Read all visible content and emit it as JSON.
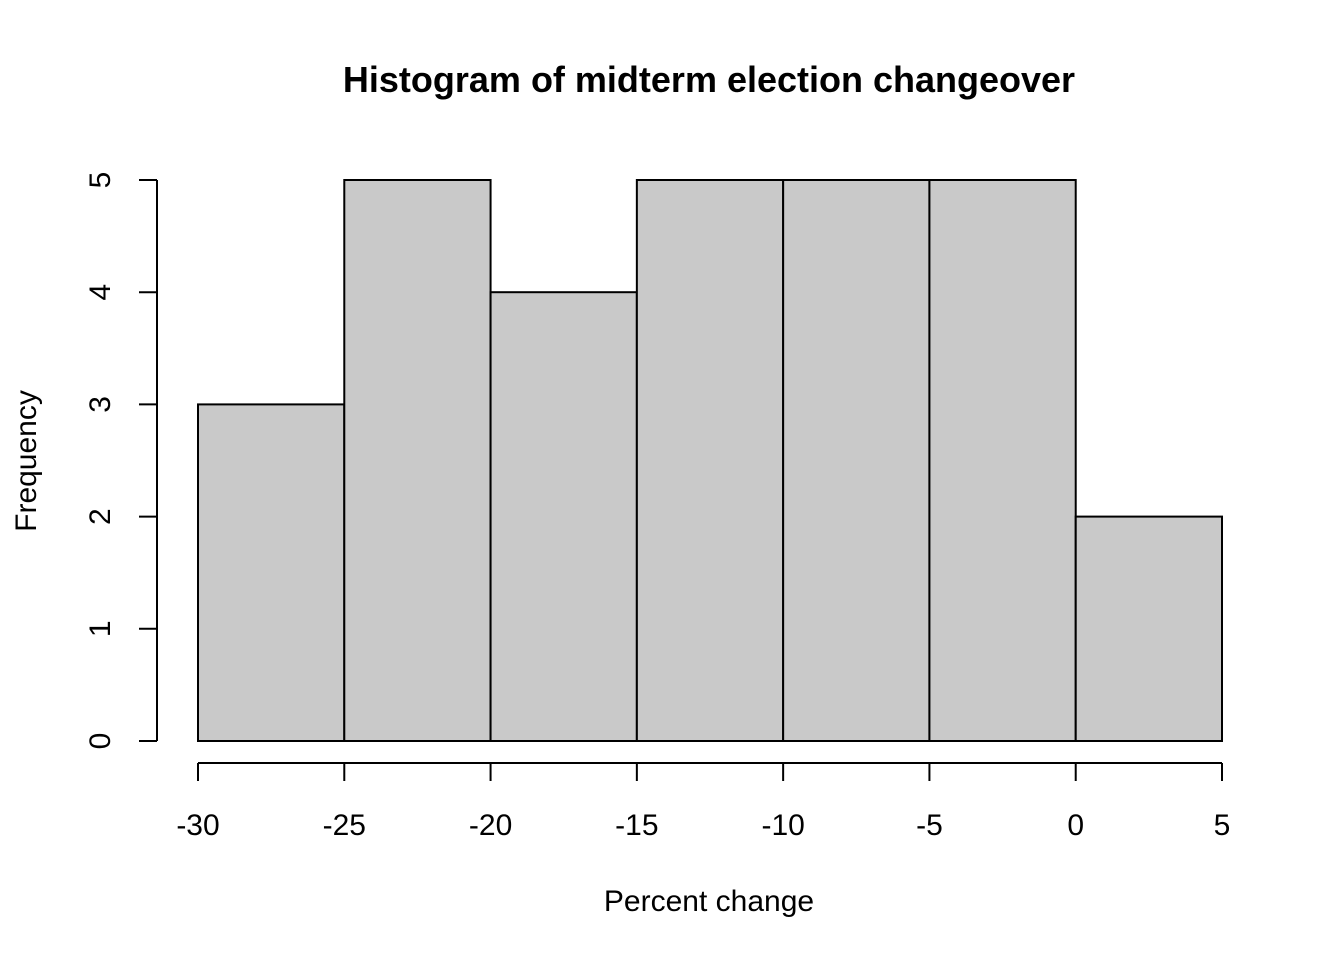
{
  "chart_data": {
    "type": "bar",
    "subtype": "histogram",
    "title": "Histogram of midterm election changeover",
    "xlabel": "Percent change",
    "ylabel": "Frequency",
    "bins": [
      {
        "from": -30,
        "to": -25,
        "count": 3
      },
      {
        "from": -25,
        "to": -20,
        "count": 5
      },
      {
        "from": -20,
        "to": -15,
        "count": 4
      },
      {
        "from": -15,
        "to": -10,
        "count": 5
      },
      {
        "from": -10,
        "to": -5,
        "count": 5
      },
      {
        "from": -5,
        "to": 0,
        "count": 5
      },
      {
        "from": 0,
        "to": 5,
        "count": 2
      }
    ],
    "xlim": [
      -30,
      5
    ],
    "ylim": [
      0,
      5
    ],
    "x_ticks": [
      "-30",
      "-25",
      "-20",
      "-15",
      "-10",
      "-5",
      "0",
      "5"
    ],
    "y_ticks": [
      "0",
      "1",
      "2",
      "3",
      "4",
      "5"
    ],
    "bar_color": "#c9c9c9",
    "grid": false,
    "legend": "none"
  }
}
